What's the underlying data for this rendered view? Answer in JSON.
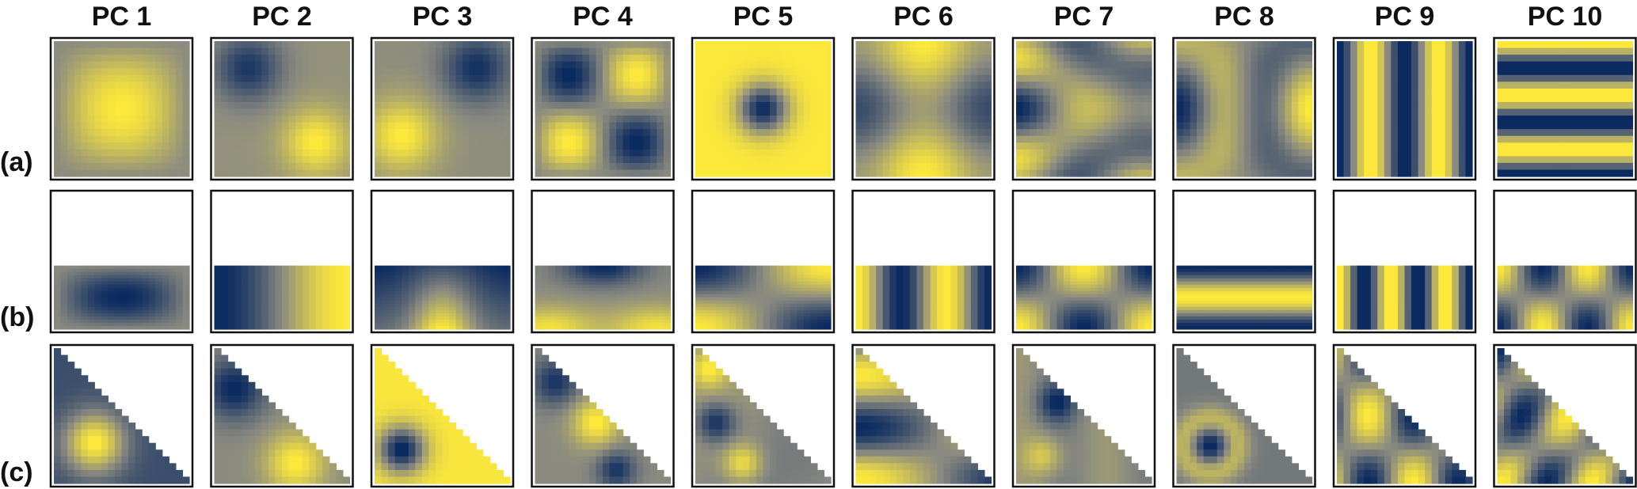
{
  "columns": [
    "PC 1",
    "PC 2",
    "PC 3",
    "PC 4",
    "PC 5",
    "PC 6",
    "PC 7",
    "PC 8",
    "PC 9",
    "PC 10"
  ],
  "rows": [
    {
      "label": "(a)",
      "domain": "square"
    },
    {
      "label": "(b)",
      "domain": "rectangle"
    },
    {
      "label": "(c)",
      "domain": "triangle"
    }
  ],
  "colors": {
    "low": "#0b2a60",
    "mid": "#8a8a80",
    "high": "#fce83a",
    "frame": "#111111"
  },
  "grid_resolution": 20
}
